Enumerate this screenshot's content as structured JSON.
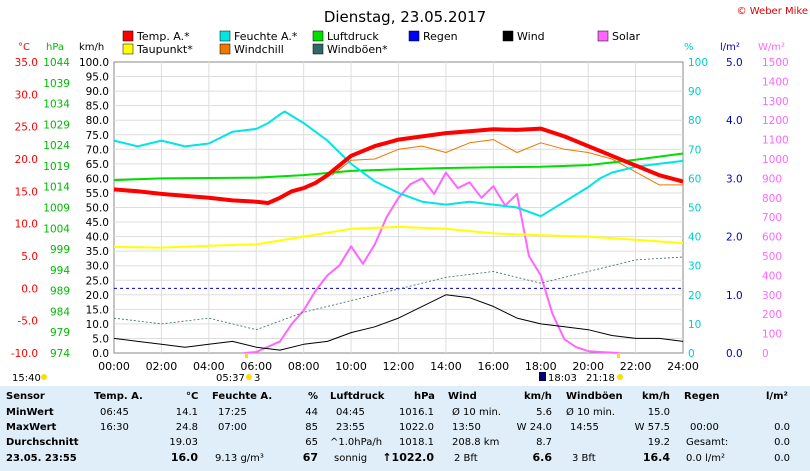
{
  "header": {
    "title": "Dienstag, 23.05.2017",
    "credit": "© Weber Mike"
  },
  "legend": [
    {
      "label": "Temp. A.*",
      "color": "#ff0000"
    },
    {
      "label": "Feuchte A.*",
      "color": "#00e5e5"
    },
    {
      "label": "Luftdruck",
      "color": "#00dd00"
    },
    {
      "label": "Regen",
      "color": "#0000ff"
    },
    {
      "label": "Wind",
      "color": "#000000"
    },
    {
      "label": "Solar",
      "color": "#ff66ff"
    },
    {
      "label": "Taupunkt*",
      "color": "#ffff00"
    },
    {
      "label": "Windchill",
      "color": "#ee7700"
    },
    {
      "label": "Windböen*",
      "color": "#336666"
    }
  ],
  "axes": {
    "temp": {
      "unit": "°C",
      "ticks": [
        "35.0",
        "30.0",
        "25.0",
        "20.0",
        "15.0",
        "10.0",
        "5.0",
        "0.0",
        "-5.0",
        "-10.0"
      ],
      "color": "#ff0000"
    },
    "pressure": {
      "unit": "hPa",
      "ticks": [
        "1044",
        "1039",
        "1034",
        "1029",
        "1024",
        "1019",
        "1014",
        "1009",
        "1004",
        "999",
        "994",
        "989",
        "984",
        "979",
        "974"
      ],
      "color": "#00bb00"
    },
    "wind": {
      "unit": "km/h",
      "ticks": [
        "100.0",
        "95.0",
        "90.0",
        "85.0",
        "80.0",
        "75.0",
        "70.0",
        "65.0",
        "60.0",
        "55.0",
        "50.0",
        "45.0",
        "40.0",
        "35.0",
        "30.0",
        "25.0",
        "20.0",
        "15.0",
        "10.0",
        "5.0",
        "0.0"
      ],
      "color": "#000000"
    },
    "humidity": {
      "unit": "%",
      "ticks": [
        "100",
        "90",
        "80",
        "70",
        "60",
        "50",
        "40",
        "30",
        "20",
        "10",
        "0"
      ],
      "color": "#00cccc"
    },
    "rain": {
      "unit": "l/m²",
      "ticks": [
        "5.0",
        "4.0",
        "3.0",
        "2.0",
        "1.0",
        "0.0"
      ],
      "color": "#0000cc"
    },
    "solar": {
      "unit": "W/m²",
      "ticks": [
        "1500",
        "1400",
        "1300",
        "1200",
        "1100",
        "1000",
        "900",
        "800",
        "700",
        "600",
        "500",
        "400",
        "300",
        "200",
        "100",
        "0"
      ],
      "color": "#ff66ff"
    },
    "x_ticks": [
      "00:00",
      "02:00",
      "04:00",
      "06:00",
      "08:00",
      "10:00",
      "12:00",
      "14:00",
      "16:00",
      "18:00",
      "20:00",
      "22:00",
      "24:00"
    ]
  },
  "time_markers": {
    "current": "15:40",
    "sunrise": "05:37",
    "sunrise_sym": "3",
    "moonset": "18:03",
    "sunset": "21:18"
  },
  "chart_data": {
    "type": "line",
    "xlabel": "",
    "ylabel": "",
    "x_unit": "hours",
    "xlim": [
      0,
      24
    ],
    "series": [
      {
        "name": "Temp. A.*",
        "axis": "temp",
        "ylim": [
          -10,
          35
        ],
        "x": [
          0,
          1,
          2,
          3,
          4,
          5,
          6,
          6.5,
          7,
          7.5,
          8,
          8.5,
          9,
          10,
          11,
          12,
          13,
          14,
          15,
          16,
          17,
          18,
          19,
          20,
          21,
          22,
          23,
          24
        ],
        "values": [
          15.3,
          15,
          14.6,
          14.3,
          14,
          13.6,
          13.4,
          13.2,
          14,
          15,
          15.5,
          16.3,
          17.5,
          20.5,
          22,
          23,
          23.5,
          24,
          24.3,
          24.6,
          24.5,
          24.7,
          23.5,
          22,
          20.5,
          19,
          17.5,
          16.5
        ]
      },
      {
        "name": "Feuchte A.*",
        "axis": "humidity",
        "ylim": [
          0,
          100
        ],
        "x": [
          0,
          1,
          2,
          3,
          4,
          5,
          6,
          6.5,
          7,
          7.2,
          8,
          9,
          10,
          11,
          12,
          13,
          14,
          15,
          16,
          17,
          18,
          19,
          20,
          20.5,
          21,
          22,
          23,
          24
        ],
        "values": [
          73,
          71,
          73,
          71,
          72,
          76,
          77,
          79,
          82,
          83,
          79,
          73,
          65,
          59,
          55,
          52,
          51,
          52,
          51,
          50,
          47,
          52,
          57,
          60,
          62,
          64,
          65,
          66
        ]
      },
      {
        "name": "Luftdruck",
        "axis": "pressure",
        "ylim": [
          974,
          1044
        ],
        "x": [
          0,
          2,
          4,
          6,
          8,
          10,
          12,
          14,
          16,
          18,
          20,
          22,
          24
        ],
        "values": [
          1015.6,
          1016,
          1016.1,
          1016.2,
          1016.8,
          1017.8,
          1018.2,
          1018.5,
          1018.7,
          1018.8,
          1019.2,
          1020.5,
          1022.0
        ]
      },
      {
        "name": "Taupunkt*",
        "axis": "temp",
        "ylim": [
          -10,
          35
        ],
        "x": [
          0,
          2,
          4,
          6,
          8,
          10,
          12,
          14,
          16,
          18,
          20,
          22,
          24
        ],
        "values": [
          6.4,
          6.3,
          6.6,
          6.8,
          8,
          9.2,
          9.5,
          9.2,
          8.5,
          8.2,
          8,
          7.5,
          7
        ]
      },
      {
        "name": "Windchill",
        "axis": "temp",
        "ylim": [
          -10,
          35
        ],
        "x": [
          9.2,
          10,
          11,
          12,
          13,
          14,
          15,
          16,
          17,
          18,
          19,
          20,
          21,
          22,
          23,
          24
        ],
        "values": [
          17.5,
          19.8,
          20,
          21.5,
          22,
          21,
          22.5,
          23,
          21,
          22.5,
          21.5,
          21,
          20,
          18,
          16,
          16
        ]
      },
      {
        "name": "Wind",
        "axis": "wind",
        "ylim": [
          0,
          100
        ],
        "x": [
          0,
          1,
          2,
          3,
          4,
          5,
          6,
          7,
          8,
          9,
          10,
          11,
          12,
          13,
          14,
          15,
          16,
          17,
          18,
          19,
          20,
          21,
          22,
          23,
          24
        ],
        "values": [
          5,
          4,
          3,
          2,
          3,
          4,
          2,
          1,
          3,
          4,
          7,
          9,
          12,
          16,
          20,
          19,
          16,
          12,
          10,
          9,
          8,
          6,
          5,
          5,
          4
        ]
      },
      {
        "name": "Windböen*",
        "axis": "wind",
        "ylim": [
          0,
          100
        ],
        "x": [
          0,
          2,
          4,
          6,
          8,
          10,
          12,
          14,
          16,
          18,
          20,
          22,
          24
        ],
        "values": [
          12,
          10,
          12,
          8,
          14,
          18,
          22,
          26,
          28,
          24,
          28,
          32,
          33
        ]
      },
      {
        "name": "Solar",
        "axis": "solar",
        "ylim": [
          0,
          1500
        ],
        "x": [
          5.5,
          6,
          7,
          7.5,
          8,
          8.5,
          9,
          9.5,
          10,
          10.5,
          11,
          11.5,
          12,
          12.5,
          13,
          13.5,
          14,
          14.5,
          15,
          15.5,
          16,
          16.5,
          17,
          17.5,
          18,
          18.5,
          19,
          19.5,
          20,
          20.5,
          21,
          21.3
        ],
        "values": [
          0,
          5,
          60,
          150,
          220,
          320,
          400,
          450,
          550,
          460,
          560,
          700,
          800,
          870,
          900,
          820,
          930,
          850,
          880,
          800,
          860,
          760,
          820,
          500,
          400,
          200,
          70,
          30,
          10,
          5,
          2,
          0
        ]
      }
    ]
  },
  "stats": {
    "labels": {
      "sensor": "Sensor",
      "min": "MinWert",
      "max": "MaxWert",
      "avg": "Durchschnitt",
      "now": "23.05. 23:55"
    },
    "temp": {
      "title": "Temp. A.",
      "unit": "°C",
      "min_time": "06:45",
      "min": "14.1",
      "max_time": "16:30",
      "max": "24.8",
      "avg": "19.03",
      "now": "16.0"
    },
    "humidity": {
      "title": "Feuchte A.",
      "unit": "%",
      "min_time": "17:25",
      "min": "44",
      "max_time": "07:00",
      "max": "85",
      "avg": "65",
      "now_extra": "9.13 g/m³",
      "now": "67"
    },
    "pressure": {
      "title": "Luftdruck",
      "unit": "hPa",
      "min_time": "04:45",
      "min": "1016.1",
      "max_time": "23:55",
      "max": "1022.0",
      "avg_label": "^1.0hPa/h",
      "avg": "1018.1",
      "now_label": "sonnig",
      "now": "↑1022.0"
    },
    "wind": {
      "title": "Wind",
      "unit": "km/h",
      "min_label": "Ø 10 min.",
      "min": "5.6",
      "max_time": "13:50",
      "max": "W 24.0",
      "avg_label": "208.8 km",
      "avg": "8.7",
      "now_label": "2 Bft",
      "now": "6.6"
    },
    "gusts": {
      "title": "Windböen",
      "unit": "km/h",
      "min_label": "Ø 10 min.",
      "min": "15.0",
      "max_time": "14:55",
      "max": "W 57.5",
      "avg": "19.2",
      "now_label": "3 Bft",
      "now": "16.4"
    },
    "rain": {
      "title": "Regen",
      "unit": "l/m²",
      "max_time": "00:00",
      "max": "0.0",
      "avg_label": "Gesamt:",
      "avg": "0.0",
      "now_label": "0.0 l/m²",
      "now": "0.0"
    }
  }
}
